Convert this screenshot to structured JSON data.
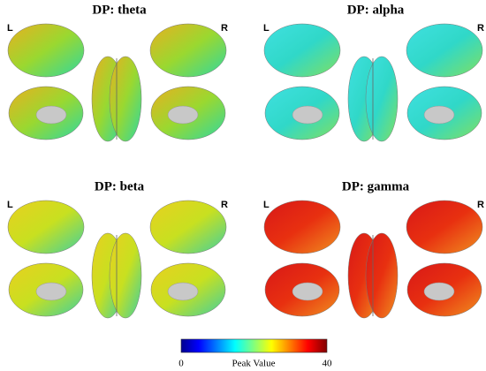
{
  "panels": [
    {
      "title": "DP: theta",
      "left": "L",
      "right": "R"
    },
    {
      "title": "DP: alpha",
      "left": "L",
      "right": "R"
    },
    {
      "title": "DP: beta",
      "left": "L",
      "right": "R"
    },
    {
      "title": "DP: gamma",
      "left": "L",
      "right": "R"
    }
  ],
  "colorbar": {
    "min": 0,
    "label": "Peak Value",
    "max": 40
  }
}
